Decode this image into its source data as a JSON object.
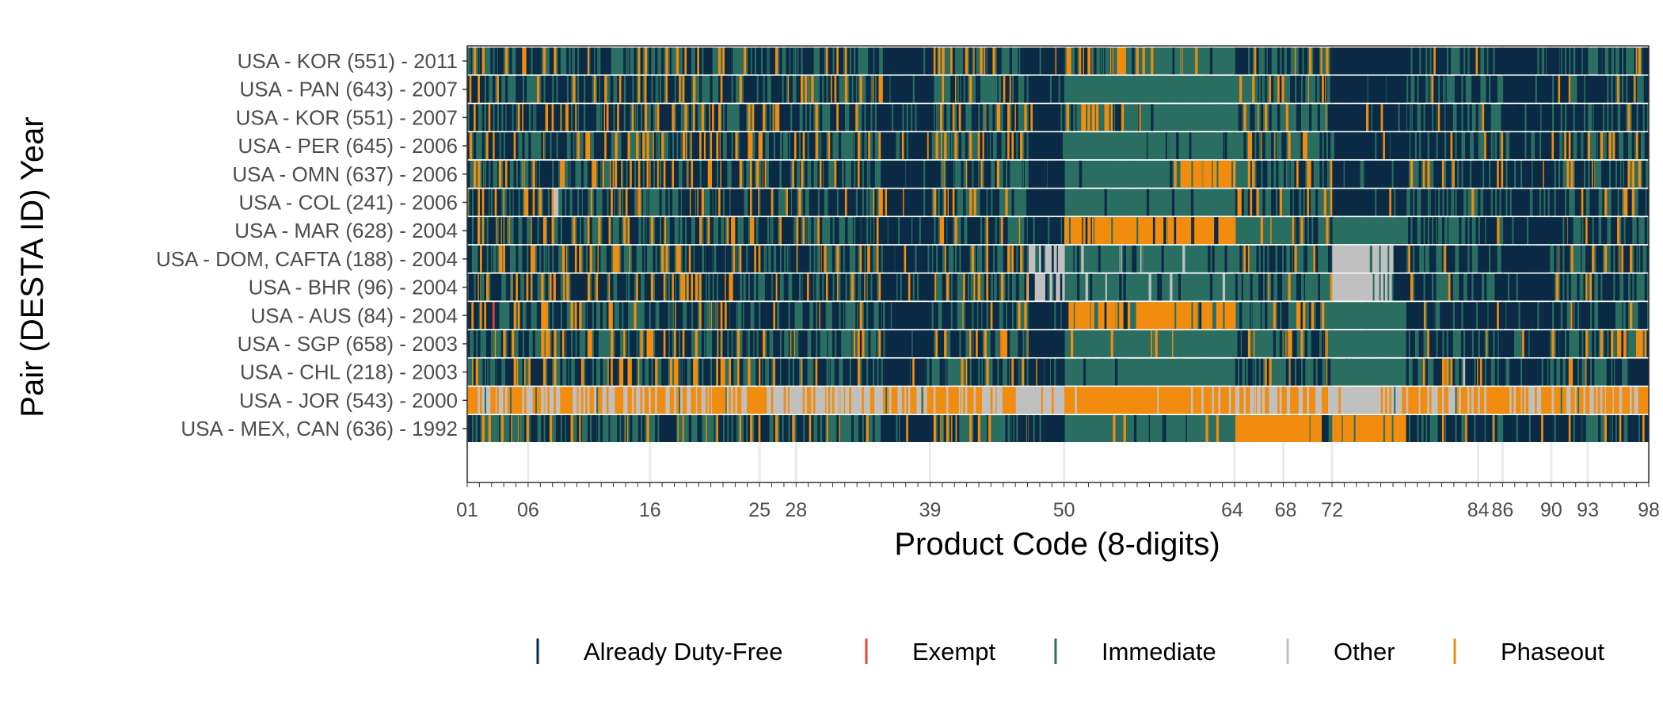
{
  "chart_data": {
    "type": "heatmap",
    "title": "",
    "xlabel": "Product Code (8-digits)",
    "ylabel": "Pair (DESTA ID) Year",
    "y_categories": [
      "USA - KOR (551) - 2011",
      "USA - PAN (643) - 2007",
      "USA - KOR (551) - 2007",
      "USA - PER (645) - 2006",
      "USA - OMN (637) - 2006",
      "USA - COL (241) - 2006",
      "USA - MAR (628) - 2004",
      "USA - DOM, CAFTA (188) - 2004",
      "USA - BHR (96) - 2004",
      "USA - AUS (84) - 2004",
      "USA - SGP (658) - 2003",
      "USA - CHL (218) - 2003",
      "USA - JOR (543) - 2000",
      "USA - MEX, CAN (636) - 1992"
    ],
    "x_range": [
      1,
      98
    ],
    "x_tick_labels": [
      "01",
      "06",
      "16",
      "25",
      "28",
      "39",
      "50",
      "64",
      "68",
      "72",
      "84",
      "86",
      "90",
      "93",
      "98"
    ],
    "x_tick_values": [
      1,
      6,
      16,
      25,
      28,
      39,
      50,
      64,
      68,
      72,
      84,
      86,
      90,
      93,
      98
    ],
    "legend": {
      "position": "bottom",
      "entries": [
        {
          "label": "Already Duty-Free",
          "color": "#0b2a45"
        },
        {
          "label": "Exempt",
          "color": "#e8403a"
        },
        {
          "label": "Immediate",
          "color": "#2a6e62"
        },
        {
          "label": "Other",
          "color": "#c0c0c0"
        },
        {
          "label": "Phaseout",
          "color": "#f28c0f"
        }
      ]
    },
    "dominant_category_by_chapter_range": [
      {
        "x": [
          1,
          24
        ],
        "row_composition": "Immediate and Already Duty-Free mixed, Phaseout frequent"
      },
      {
        "x": [
          25,
          38
        ],
        "row_composition": "Already Duty-Free dominant"
      },
      {
        "x": [
          39,
          49
        ],
        "row_composition": "Immediate and Already Duty-Free mixed"
      },
      {
        "x": [
          50,
          63
        ],
        "row_composition": "Immediate; Phaseout dominant for MAR, AUS, JOR, OMN partly"
      },
      {
        "x": [
          64,
          71
        ],
        "row_composition": "Immediate; Phaseout for MEX, CAN"
      },
      {
        "x": [
          72,
          83
        ],
        "row_composition": "Already Duty-Free dominant; Other for DOM, CAFTA and BHR"
      },
      {
        "x": [
          84,
          98
        ],
        "row_composition": "Already Duty-Free and Immediate mixed"
      }
    ],
    "grid": false
  }
}
